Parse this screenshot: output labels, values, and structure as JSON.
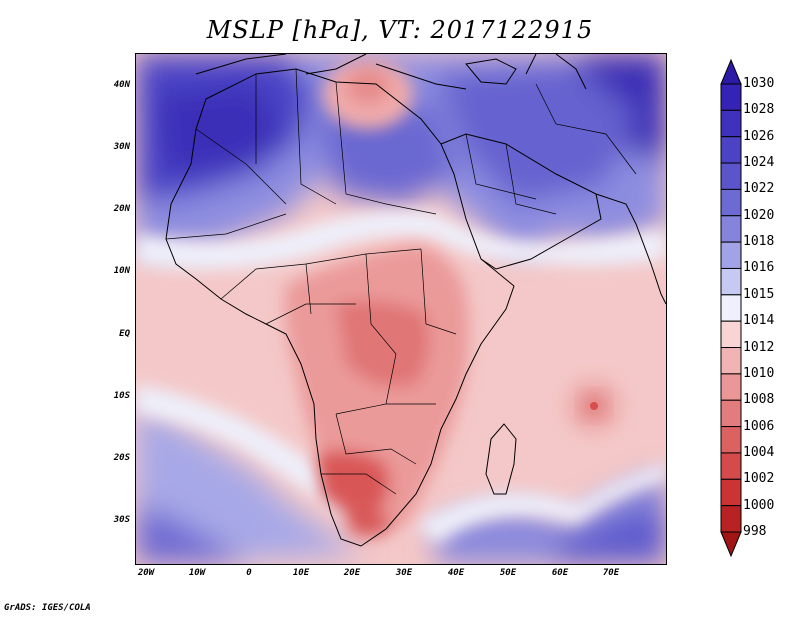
{
  "title": "MSLP [hPa], VT: 2017122915",
  "credit": "GrADS: IGES/COLA",
  "axes": {
    "lat_labels": [
      "40N",
      "30N",
      "20N",
      "10N",
      "EQ",
      "10S",
      "20S",
      "30S"
    ],
    "lon_labels": [
      "20W",
      "10W",
      "0",
      "10E",
      "20E",
      "30E",
      "40E",
      "50E",
      "60E",
      "70E"
    ]
  },
  "map": {
    "variable": "Mean sea level pressure",
    "units": "hPa",
    "lat_range": [
      -37,
      45
    ],
    "lon_range": [
      -23,
      80
    ],
    "high_pressure_regions": [
      "North Africa",
      "Middle East",
      "Central Asia",
      "Southern Ocean"
    ],
    "low_pressure_regions": [
      "Southern Africa",
      "Central Africa",
      "Mediterranean",
      "Indian Ocean cyclone"
    ]
  },
  "colorbar": {
    "levels": [
      "1030",
      "1028",
      "1026",
      "1024",
      "1022",
      "1020",
      "1018",
      "1016",
      "1015",
      "1014",
      "1012",
      "1010",
      "1008",
      "1006",
      "1004",
      "1002",
      "1000",
      "998"
    ],
    "colors": [
      "#2a1aa6",
      "#3423b4",
      "#3f31bd",
      "#4c42c4",
      "#5b55cc",
      "#6c6ad3",
      "#8584dc",
      "#a2a3e6",
      "#c6c9f1",
      "#eef0fb",
      "#f8d4d4",
      "#f1b3b3",
      "#eb9797",
      "#e37c7c",
      "#dc6262",
      "#d54a4a",
      "#cc3333",
      "#b82222",
      "#a11515"
    ]
  }
}
